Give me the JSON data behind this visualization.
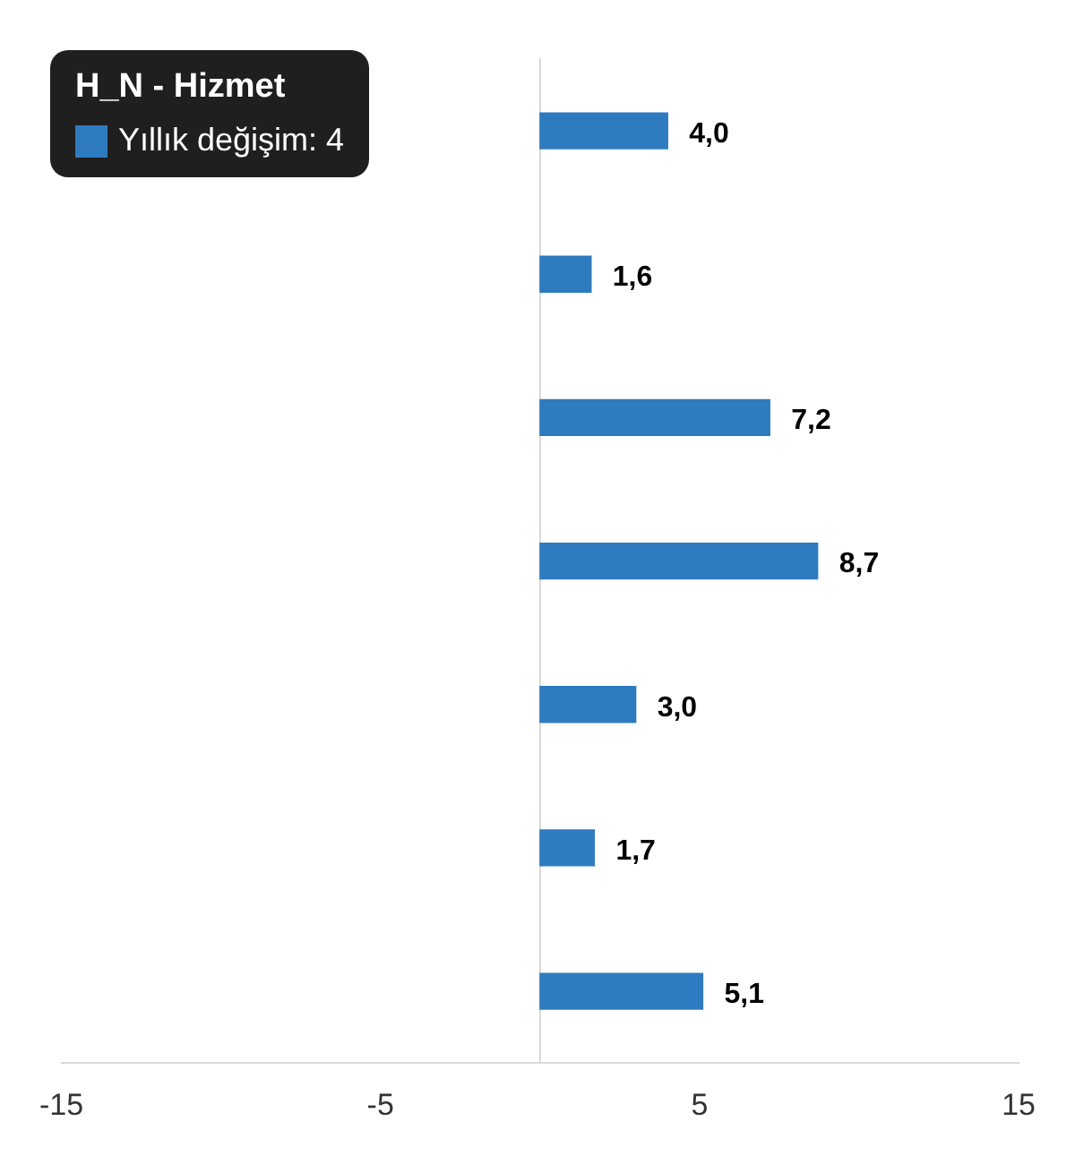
{
  "chart_data": {
    "type": "bar",
    "orientation": "horizontal",
    "categories": [
      null,
      null,
      null,
      null,
      null,
      null,
      null
    ],
    "values": [
      4.0,
      1.6,
      7.2,
      8.7,
      3.0,
      1.7,
      5.1
    ],
    "value_labels": [
      "4,0",
      "1,6",
      "7,2",
      "8,7",
      "3,0",
      "1,7",
      "5,1"
    ],
    "color": "#2e7bbf",
    "xlim": [
      -15,
      15
    ],
    "xticks": [
      -15,
      -5,
      5,
      15
    ],
    "annotations": [
      "H_N - Hizmet",
      "Yıllık değişim: 4"
    ]
  }
}
